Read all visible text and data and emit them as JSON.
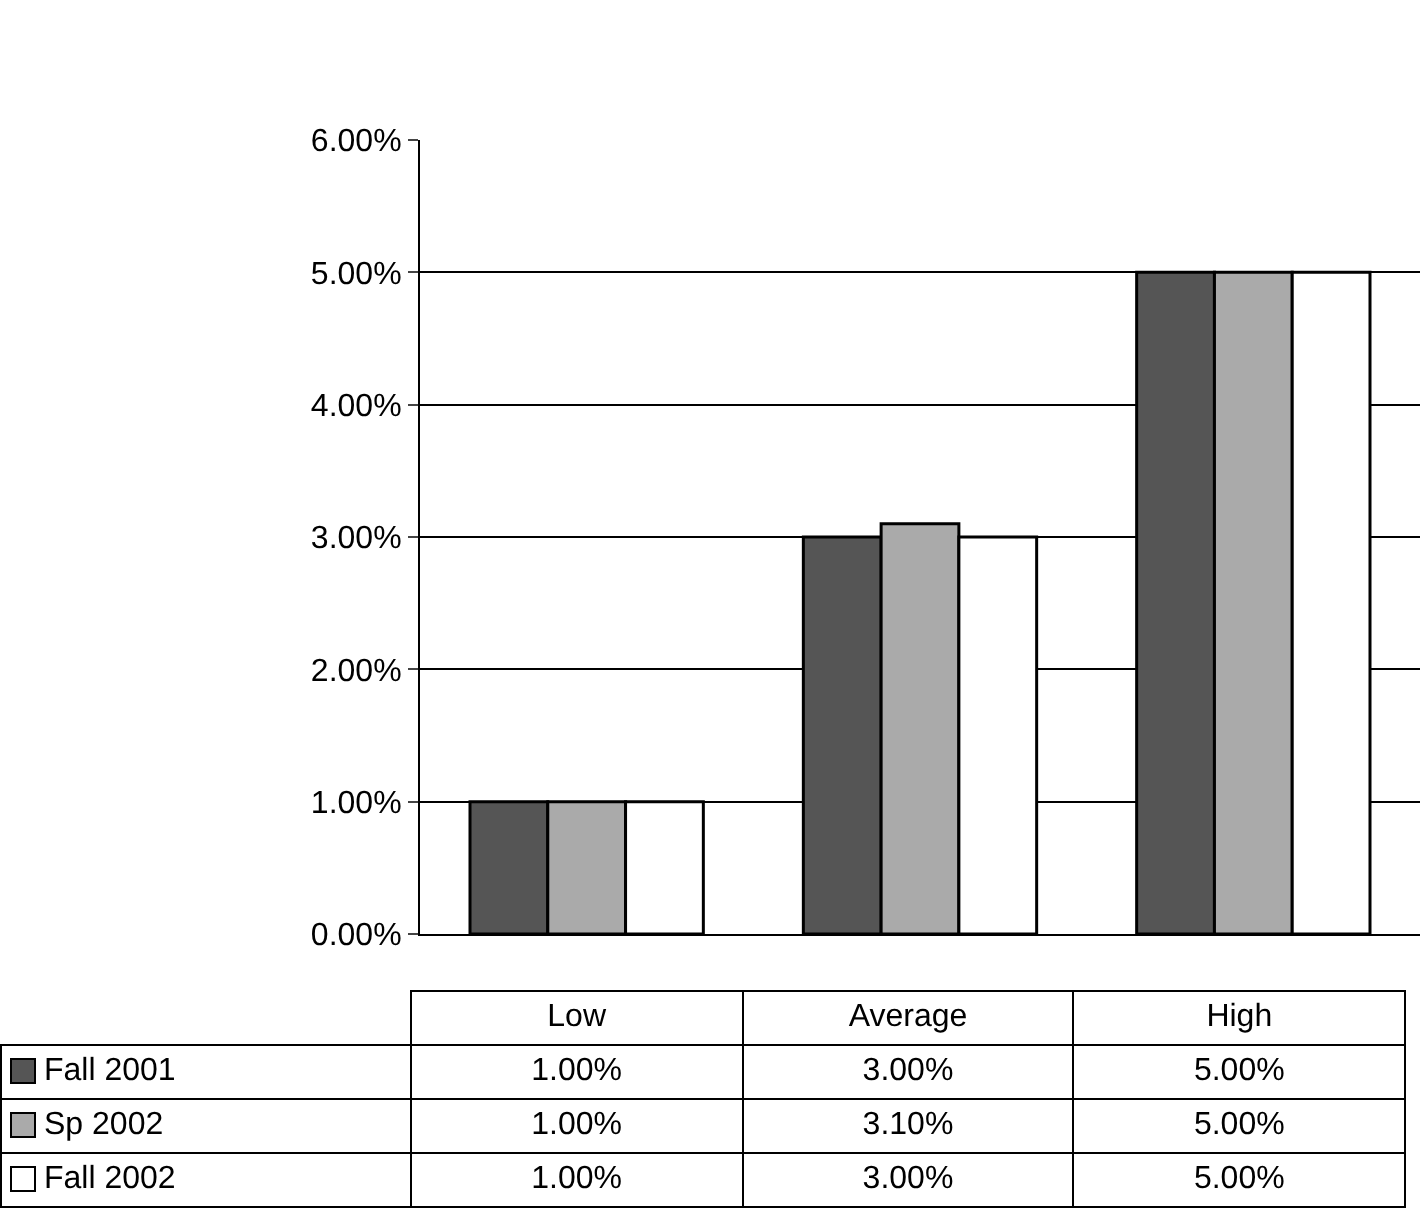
{
  "chart_data": {
    "type": "bar",
    "categories": [
      "Low",
      "Average",
      "High"
    ],
    "series": [
      {
        "name": "Fall 2001",
        "color": "#555555",
        "values": [
          1,
          3,
          5
        ],
        "value_labels": [
          "1.00%",
          "3.00%",
          "5.00%"
        ]
      },
      {
        "name": "Sp 2002",
        "color": "#aaaaaa",
        "values": [
          1,
          3.1,
          5
        ],
        "value_labels": [
          "1.00%",
          "3.10%",
          "5.00%"
        ]
      },
      {
        "name": "Fall 2002",
        "color": "#ffffff",
        "values": [
          1,
          3,
          5
        ],
        "value_labels": [
          "1.00%",
          "3.00%",
          "5.00%"
        ]
      }
    ],
    "ylim": [
      0,
      6
    ],
    "yticks": [
      {
        "value": 0,
        "label": "0.00%"
      },
      {
        "value": 1,
        "label": "1.00%"
      },
      {
        "value": 2,
        "label": "2.00%"
      },
      {
        "value": 3,
        "label": "3.00%"
      },
      {
        "value": 4,
        "label": "4.00%"
      },
      {
        "value": 5,
        "label": "5.00%"
      },
      {
        "value": 6,
        "label": "6.00%"
      }
    ],
    "grid": "y",
    "legend": "bottom"
  }
}
